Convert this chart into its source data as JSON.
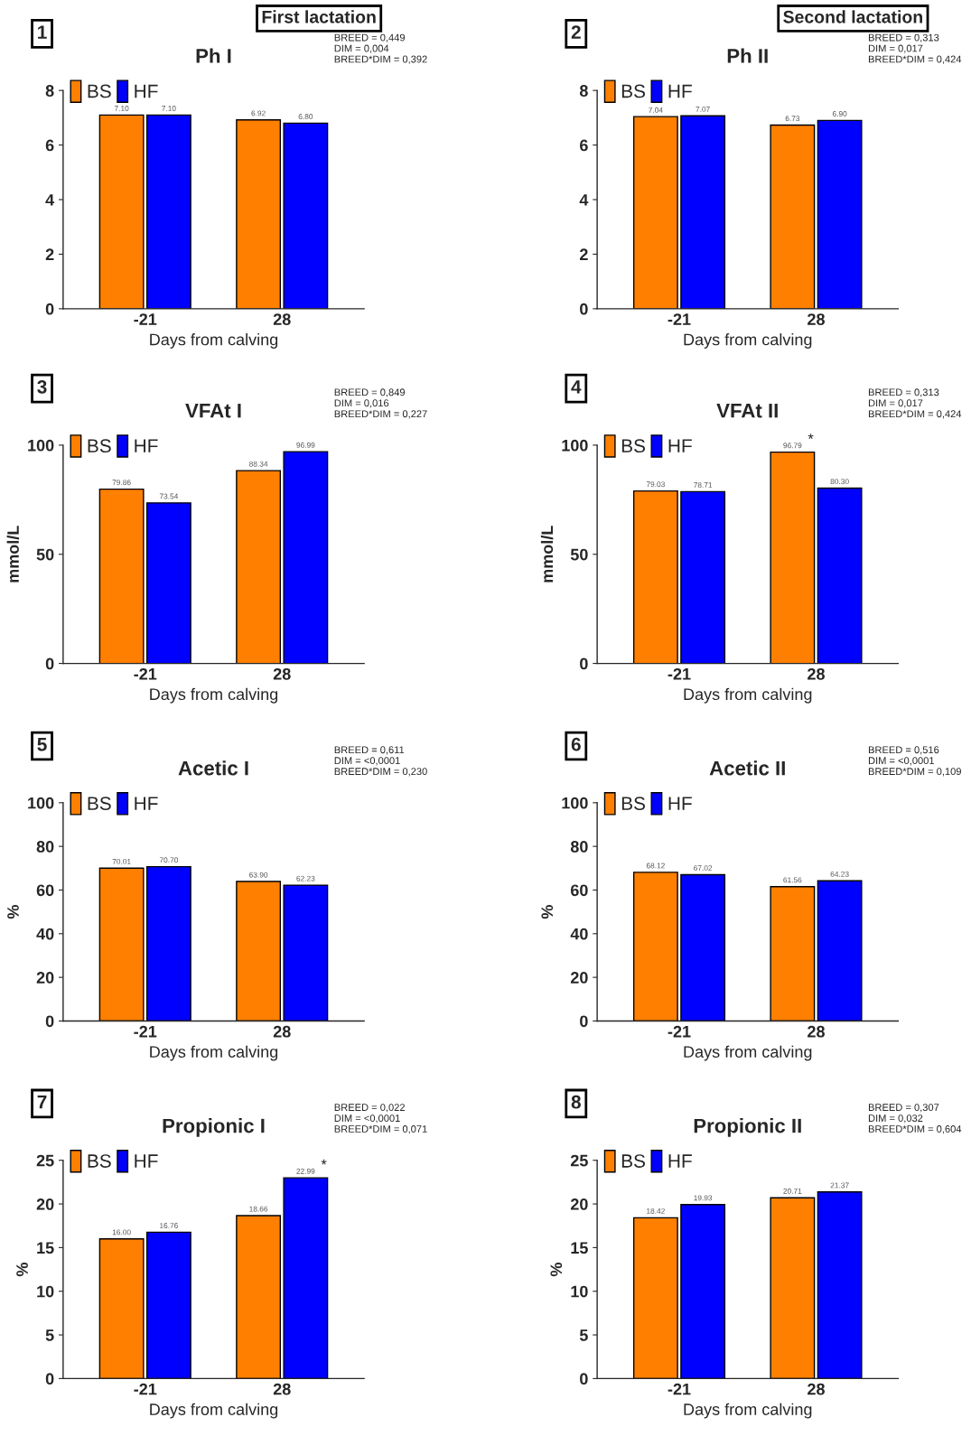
{
  "chart_data": [
    {
      "type": "bar",
      "title": "Ph I",
      "xlabel": "Days from calving",
      "categories": [
        "-21",
        "28"
      ],
      "ylim": [
        0,
        8
      ],
      "yticks": [
        0,
        2,
        4,
        6,
        8
      ],
      "legend": "top left",
      "data_labels": true,
      "series": [
        {
          "name": "BS",
          "color": "#ff7f00",
          "values": [
            7.1,
            6.92
          ],
          "value_labels": [
            "7.10",
            "6.92"
          ]
        },
        {
          "name": "HF",
          "color": "#0000ff",
          "values": [
            7.1,
            6.8
          ],
          "value_labels": [
            "7.10",
            "6.80"
          ]
        }
      ],
      "annotations": [
        "1",
        "BREED = 0,449\nDIM = 0,004\nBREED*DIM = 0,392",
        "First lactation"
      ]
    },
    {
      "type": "bar",
      "title": "Ph II",
      "xlabel": "Days from calving",
      "categories": [
        "-21",
        "28"
      ],
      "ylim": [
        0,
        8
      ],
      "yticks": [
        0,
        2,
        4,
        6,
        8
      ],
      "legend": "top left",
      "data_labels": true,
      "series": [
        {
          "name": "BS",
          "color": "#ff7f00",
          "values": [
            7.04,
            6.73
          ],
          "value_labels": [
            "7.04",
            "6.73"
          ]
        },
        {
          "name": "HF",
          "color": "#0000ff",
          "values": [
            7.07,
            6.9
          ],
          "value_labels": [
            "7.07",
            "6.90"
          ]
        }
      ],
      "annotations": [
        "2",
        "BREED = 0,313\nDIM = 0,017\nBREED*DIM = 0,424",
        "Second lactation"
      ]
    },
    {
      "type": "bar",
      "title": "VFAt I",
      "xlabel": "Days from calving",
      "ylabel": "mmol/L",
      "categories": [
        "-21",
        "28"
      ],
      "ylim": [
        0,
        100
      ],
      "yticks": [
        0,
        50,
        100
      ],
      "legend": "top left",
      "data_labels": true,
      "series": [
        {
          "name": "BS",
          "color": "#ff7f00",
          "values": [
            79.86,
            88.34
          ],
          "value_labels": [
            "79.86",
            "88.34"
          ]
        },
        {
          "name": "HF",
          "color": "#0000ff",
          "values": [
            73.54,
            96.99
          ],
          "value_labels": [
            "73.54",
            "96.99"
          ]
        }
      ],
      "annotations": [
        "3",
        "BREED = 0,849\nDIM = 0,016\nBREED*DIM = 0,227"
      ]
    },
    {
      "type": "bar",
      "title": "VFAt II",
      "xlabel": "Days from calving",
      "ylabel": "mmol/L",
      "categories": [
        "-21",
        "28"
      ],
      "ylim": [
        0,
        100
      ],
      "yticks": [
        0,
        50,
        100
      ],
      "legend": "top left",
      "data_labels": true,
      "series": [
        {
          "name": "BS",
          "color": "#ff7f00",
          "values": [
            79.03,
            96.79
          ],
          "value_labels": [
            "79.03",
            "96.79"
          ]
        },
        {
          "name": "HF",
          "color": "#0000ff",
          "values": [
            78.71,
            80.3
          ],
          "value_labels": [
            "78.71",
            "80.30"
          ]
        }
      ],
      "annotations": [
        "4",
        "BREED = 0,313\nDIM = 0,017\nBREED*DIM = 0,424",
        {
          "text": "*",
          "x": "28",
          "y": 96.79
        }
      ]
    },
    {
      "type": "bar",
      "title": "Acetic I",
      "xlabel": "Days from calving",
      "ylabel": "%",
      "categories": [
        "-21",
        "28"
      ],
      "ylim": [
        0,
        100
      ],
      "yticks": [
        0,
        20,
        40,
        60,
        80,
        100
      ],
      "legend": "top left",
      "data_labels": true,
      "series": [
        {
          "name": "BS",
          "color": "#ff7f00",
          "values": [
            70.01,
            63.9
          ],
          "value_labels": [
            "70.01",
            "63.90"
          ]
        },
        {
          "name": "HF",
          "color": "#0000ff",
          "values": [
            70.7,
            62.23
          ],
          "value_labels": [
            "70.70",
            "62.23"
          ]
        }
      ],
      "annotations": [
        "5",
        "BREED = 0,611\nDIM = <0,0001\nBREED*DIM = 0,230"
      ]
    },
    {
      "type": "bar",
      "title": "Acetic II",
      "xlabel": "Days from calving",
      "ylabel": "%",
      "categories": [
        "-21",
        "28"
      ],
      "ylim": [
        0,
        100
      ],
      "yticks": [
        0,
        20,
        40,
        60,
        80,
        100
      ],
      "legend": "top left",
      "data_labels": true,
      "series": [
        {
          "name": "BS",
          "color": "#ff7f00",
          "values": [
            68.12,
            61.56
          ],
          "value_labels": [
            "68.12",
            "61.56"
          ]
        },
        {
          "name": "HF",
          "color": "#0000ff",
          "values": [
            67.02,
            64.23
          ],
          "value_labels": [
            "67.02",
            "64.23"
          ]
        }
      ],
      "annotations": [
        "6",
        "BREED = 0,516\nDIM = <0,0001\nBREED*DIM = 0,109"
      ]
    },
    {
      "type": "bar",
      "title": "Propionic I",
      "xlabel": "Days from calving",
      "ylabel": "%",
      "categories": [
        "-21",
        "28"
      ],
      "ylim": [
        0,
        25
      ],
      "yticks": [
        0,
        5,
        10,
        15,
        20,
        25
      ],
      "legend": "top left",
      "data_labels": true,
      "series": [
        {
          "name": "BS",
          "color": "#ff7f00",
          "values": [
            16.0,
            18.66
          ],
          "value_labels": [
            "16.00",
            "18.66"
          ]
        },
        {
          "name": "HF",
          "color": "#0000ff",
          "values": [
            16.76,
            22.99
          ],
          "value_labels": [
            "16.76",
            "22.99"
          ]
        }
      ],
      "annotations": [
        "7",
        "BREED = 0,022\nDIM = <0,0001\nBREED*DIM = 0,071",
        {
          "text": "*",
          "x": "28",
          "y": 22.99
        }
      ]
    },
    {
      "type": "bar",
      "title": "Propionic II",
      "xlabel": "Days from calving",
      "ylabel": "%",
      "categories": [
        "-21",
        "28"
      ],
      "ylim": [
        0,
        25
      ],
      "yticks": [
        0,
        5,
        10,
        15,
        20,
        25
      ],
      "legend": "top left",
      "data_labels": true,
      "series": [
        {
          "name": "BS",
          "color": "#ff7f00",
          "values": [
            18.42,
            20.71
          ],
          "value_labels": [
            "18.42",
            "20.71"
          ]
        },
        {
          "name": "HF",
          "color": "#0000ff",
          "values": [
            19.93,
            21.37
          ],
          "value_labels": [
            "19.93",
            "21.37"
          ]
        }
      ],
      "annotations": [
        "8",
        "BREED = 0,307\nDIM = 0,032\nBREED*DIM = 0,604"
      ]
    }
  ]
}
